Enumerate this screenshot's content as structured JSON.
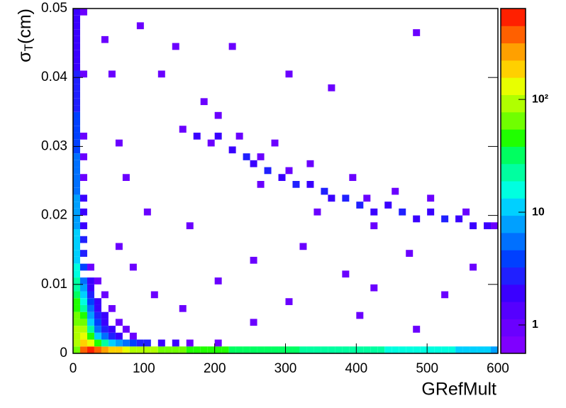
{
  "chart_data": {
    "type": "heatmap",
    "xlabel": "GRefMult",
    "ylabel": {
      "symbol": "σ",
      "sub": "T",
      "rest": "(cm)"
    },
    "xlim": [
      0,
      600
    ],
    "xticks": [
      0,
      100,
      200,
      300,
      400,
      500,
      600
    ],
    "ylim": [
      0,
      0.05
    ],
    "yticks": [
      0,
      0.01,
      0.02,
      0.03,
      0.04,
      0.05
    ],
    "zlim": [
      0.56,
      640
    ],
    "zscale": "log",
    "zticks": [
      1,
      10,
      {
        "value": 100,
        "label": "10²"
      }
    ],
    "palette": [
      "#7f00ff",
      "#6a00ff",
      "#5500ff",
      "#3a00ff",
      "#2020ff",
      "#0040ff",
      "#0070ff",
      "#00a0ff",
      "#00d0ff",
      "#00ffe0",
      "#00ffa0",
      "#00ff60",
      "#20ff00",
      "#70ff00",
      "#b0ff00",
      "#e8ff00",
      "#ffd000",
      "#ffa000",
      "#ff6000",
      "#ff2000"
    ],
    "x": [
      0,
      10,
      20,
      30,
      40,
      50,
      60,
      70,
      80,
      90,
      100,
      110,
      120,
      130,
      140,
      150,
      160,
      170,
      180,
      190,
      200,
      210,
      220,
      230,
      240,
      250,
      260,
      270,
      280,
      290,
      300,
      310,
      320,
      330,
      340,
      350,
      360,
      370,
      380,
      390,
      400,
      410,
      420,
      430,
      440,
      450,
      460,
      470,
      480,
      490,
      500,
      510,
      520,
      530,
      540,
      550,
      560,
      570,
      580,
      590,
      0,
      10,
      20,
      30,
      40,
      50,
      60,
      70,
      80,
      90,
      100,
      120,
      140,
      160,
      200,
      0,
      10,
      20,
      30,
      40,
      50,
      60,
      80,
      0,
      10,
      20,
      30,
      40,
      50,
      70,
      0,
      10,
      20,
      30,
      40,
      60,
      0,
      10,
      20,
      30,
      40,
      0,
      10,
      20,
      30,
      50,
      0,
      10,
      20,
      30,
      0,
      10,
      20,
      40,
      0,
      10,
      20,
      0,
      10,
      20,
      30,
      0,
      0,
      10,
      20,
      0,
      0,
      10,
      0,
      0,
      10,
      0,
      0,
      10,
      0,
      0,
      10,
      0,
      0,
      10,
      0,
      0,
      0,
      10,
      0,
      0,
      0,
      10,
      0,
      0,
      0,
      10,
      0,
      0,
      0,
      0,
      0,
      0,
      0,
      0,
      0,
      10,
      0,
      0,
      0,
      0,
      0,
      0,
      0,
      0,
      0,
      10,
      150,
      170,
      190,
      200,
      220,
      240,
      250,
      260,
      270,
      290,
      300,
      310,
      330,
      350,
      360,
      380,
      400,
      410,
      420,
      440,
      460,
      480,
      500,
      520,
      540,
      560,
      580,
      590,
      230,
      280,
      330,
      390,
      450,
      500,
      550,
      200,
      260,
      340,
      420,
      180,
      120,
      140,
      90,
      60,
      80,
      110,
      150,
      200,
      250,
      300,
      320,
      380,
      420,
      470,
      520,
      560,
      250,
      400,
      480,
      100,
      160,
      60,
      70,
      50,
      40,
      300,
      360,
      480,
      220
    ],
    "y": [
      0,
      0,
      0,
      0,
      0,
      0,
      0,
      0,
      0,
      0,
      0,
      0,
      0,
      0,
      0,
      0,
      0,
      0,
      0,
      0,
      0,
      0,
      0,
      0,
      0,
      0,
      0,
      0,
      0,
      0,
      0,
      0,
      0,
      0,
      0,
      0,
      0,
      0,
      0,
      0,
      0,
      0,
      0,
      0,
      0,
      0,
      0,
      0,
      0,
      0,
      0,
      0,
      0,
      0,
      0,
      0,
      0,
      0,
      0,
      0,
      0.001,
      0.001,
      0.001,
      0.001,
      0.001,
      0.001,
      0.001,
      0.001,
      0.001,
      0.001,
      0.001,
      0.001,
      0.001,
      0.001,
      0.001,
      0.002,
      0.002,
      0.002,
      0.002,
      0.002,
      0.002,
      0.002,
      0.002,
      0.003,
      0.003,
      0.003,
      0.003,
      0.003,
      0.003,
      0.003,
      0.004,
      0.004,
      0.004,
      0.004,
      0.004,
      0.004,
      0.005,
      0.005,
      0.005,
      0.005,
      0.005,
      0.006,
      0.006,
      0.006,
      0.006,
      0.006,
      0.007,
      0.007,
      0.007,
      0.007,
      0.008,
      0.008,
      0.008,
      0.008,
      0.009,
      0.009,
      0.009,
      0.01,
      0.01,
      0.01,
      0.01,
      0.011,
      0.012,
      0.012,
      0.012,
      0.013,
      0.014,
      0.014,
      0.015,
      0.016,
      0.016,
      0.017,
      0.018,
      0.018,
      0.019,
      0.02,
      0.02,
      0.021,
      0.022,
      0.022,
      0.023,
      0.024,
      0.025,
      0.025,
      0.026,
      0.027,
      0.028,
      0.028,
      0.029,
      0.03,
      0.031,
      0.031,
      0.032,
      0.033,
      0.034,
      0.035,
      0.036,
      0.037,
      0.038,
      0.039,
      0.04,
      0.04,
      0.041,
      0.042,
      0.043,
      0.044,
      0.045,
      0.046,
      0.047,
      0.048,
      0.049,
      0.049,
      0.032,
      0.031,
      0.03,
      0.031,
      0.029,
      0.028,
      0.027,
      0.028,
      0.026,
      0.025,
      0.026,
      0.024,
      0.024,
      0.023,
      0.022,
      0.022,
      0.021,
      0.022,
      0.02,
      0.021,
      0.02,
      0.019,
      0.02,
      0.019,
      0.019,
      0.018,
      0.018,
      0.018,
      0.031,
      0.03,
      0.027,
      0.025,
      0.023,
      0.022,
      0.02,
      0.034,
      0.024,
      0.02,
      0.018,
      0.036,
      0.04,
      0.044,
      0.047,
      0.015,
      0.012,
      0.008,
      0.006,
      0.01,
      0.013,
      0.007,
      0.015,
      0.011,
      0.009,
      0.014,
      0.008,
      0.012,
      0.004,
      0.005,
      0.003,
      0.02,
      0.018,
      0.03,
      0.025,
      0.04,
      0.045,
      0.04,
      0.038,
      0.046,
      0.044
    ],
    "values": [
      60,
      400,
      500,
      350,
      250,
      200,
      160,
      130,
      110,
      100,
      90,
      80,
      70,
      65,
      60,
      55,
      50,
      48,
      45,
      42,
      40,
      39,
      38,
      36,
      35,
      34,
      32,
      31,
      30,
      29,
      28,
      27,
      26,
      26,
      25,
      24,
      24,
      23,
      22,
      22,
      21,
      20,
      20,
      19,
      18,
      18,
      17,
      17,
      16,
      16,
      15,
      15,
      14,
      14,
      13,
      13,
      12,
      11,
      10,
      8,
      80,
      200,
      120,
      40,
      20,
      12,
      8,
      5,
      4,
      3,
      3,
      2,
      2,
      1,
      1,
      90,
      150,
      40,
      10,
      5,
      3,
      2,
      1,
      80,
      100,
      20,
      5,
      3,
      2,
      1,
      70,
      60,
      12,
      4,
      2,
      1,
      60,
      40,
      8,
      3,
      2,
      50,
      25,
      5,
      2,
      1,
      40,
      15,
      4,
      2,
      30,
      10,
      3,
      1,
      25,
      7,
      2,
      20,
      5,
      2,
      1,
      18,
      15,
      4,
      1,
      13,
      12,
      3,
      11,
      10,
      3,
      10,
      9,
      2,
      8,
      8,
      2,
      7,
      7,
      2,
      6,
      6,
      6,
      1,
      5,
      5,
      5,
      1,
      4,
      4,
      4,
      1,
      4,
      4,
      4,
      3,
      3,
      3,
      3,
      3,
      3,
      1,
      2,
      2,
      2,
      2,
      2,
      2,
      2,
      2,
      2,
      1,
      1,
      2,
      1,
      2,
      2,
      3,
      2,
      1,
      3,
      2,
      1,
      3,
      2,
      3,
      2,
      3,
      3,
      1,
      2,
      2,
      3,
      2,
      2,
      3,
      2,
      2,
      2,
      1,
      1,
      1,
      1,
      1,
      1,
      1,
      1,
      1,
      1,
      1,
      1,
      1,
      1,
      1,
      1,
      1,
      1,
      1,
      1,
      1,
      1,
      1,
      1,
      1,
      1,
      1,
      1,
      1,
      1,
      1,
      1,
      1,
      1,
      1,
      1,
      1,
      1,
      1,
      1,
      1,
      1
    ]
  }
}
